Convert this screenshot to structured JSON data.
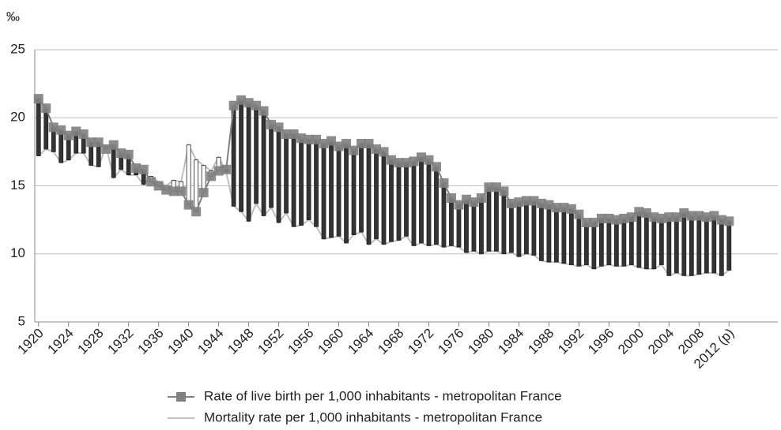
{
  "chart_data": {
    "type": "line",
    "y_unit": "‰",
    "categories": [
      "1920",
      null,
      null,
      null,
      "1924",
      null,
      null,
      null,
      "1928",
      null,
      null,
      null,
      "1932",
      null,
      null,
      null,
      "1936",
      null,
      null,
      null,
      "1940",
      null,
      null,
      null,
      "1944",
      null,
      null,
      null,
      "1948",
      null,
      null,
      null,
      "1952",
      null,
      null,
      null,
      "1956",
      null,
      null,
      null,
      "1960",
      null,
      null,
      null,
      "1964",
      null,
      null,
      null,
      "1968",
      null,
      null,
      null,
      "1972",
      null,
      null,
      null,
      "1976",
      null,
      null,
      null,
      "1980",
      null,
      null,
      null,
      "1984",
      null,
      null,
      null,
      "1988",
      null,
      null,
      null,
      "1992",
      null,
      null,
      null,
      "1996",
      null,
      null,
      null,
      "2000",
      null,
      null,
      null,
      "2004",
      null,
      null,
      null,
      "2008",
      null,
      null,
      null,
      "2012 (p)",
      null,
      null,
      null,
      null,
      null,
      null
    ],
    "series": [
      {
        "name": "Rate of live birth per 1,000 inhabitants - metropolitan France",
        "color": "#808080",
        "values": [
          21.4,
          20.7,
          19.3,
          19.1,
          18.7,
          19.0,
          18.8,
          18.2,
          18.2,
          17.7,
          18.0,
          17.4,
          17.3,
          16.3,
          16.2,
          15.3,
          15.0,
          14.7,
          14.6,
          14.6,
          13.6,
          13.1,
          14.5,
          15.7,
          16.1,
          16.2,
          20.9,
          21.3,
          21.1,
          20.9,
          20.5,
          19.5,
          19.3,
          18.8,
          18.8,
          18.5,
          18.4,
          18.4,
          18.1,
          18.3,
          17.9,
          18.1,
          17.6,
          18.1,
          18.1,
          17.7,
          17.5,
          16.9,
          16.7,
          16.7,
          16.8,
          17.1,
          16.9,
          16.4,
          15.2,
          14.1,
          13.6,
          14.0,
          13.8,
          14.1,
          14.9,
          14.9,
          14.6,
          13.7,
          13.8,
          13.9,
          13.9,
          13.7,
          13.6,
          13.4,
          13.4,
          13.3,
          12.9,
          12.3,
          12.3,
          12.6,
          12.6,
          12.5,
          12.6,
          12.7,
          13.1,
          13.0,
          12.7,
          12.6,
          12.7,
          12.7,
          13.0,
          12.8,
          12.8,
          12.7,
          12.8,
          12.5,
          12.4,
          null,
          null,
          null,
          null,
          null,
          null
        ]
      },
      {
        "name": "Mortality rate per 1,000 inhabitants - metropolitan France",
        "color": "#c0c0c0",
        "values": [
          17.2,
          17.7,
          17.5,
          16.7,
          16.9,
          17.4,
          17.4,
          16.5,
          16.4,
          17.9,
          15.6,
          16.2,
          15.8,
          15.8,
          15.1,
          15.7,
          15.3,
          15.0,
          15.4,
          15.3,
          18.0,
          16.9,
          16.5,
          16.1,
          17.1,
          16.0,
          13.5,
          13.1,
          12.4,
          13.7,
          12.8,
          13.4,
          12.3,
          13.0,
          12.0,
          12.1,
          12.5,
          12.0,
          11.1,
          11.2,
          11.3,
          10.8,
          11.4,
          11.6,
          10.7,
          11.1,
          10.7,
          10.9,
          11.0,
          11.3,
          10.6,
          10.8,
          10.6,
          10.7,
          10.5,
          10.6,
          10.5,
          10.1,
          10.2,
          10.0,
          10.2,
          10.2,
          10.0,
          10.1,
          9.8,
          10.0,
          9.9,
          9.5,
          9.4,
          9.4,
          9.3,
          9.2,
          9.1,
          9.2,
          8.9,
          9.1,
          9.2,
          9.1,
          9.1,
          9.2,
          9.0,
          8.9,
          8.9,
          9.2,
          8.4,
          8.6,
          8.4,
          8.4,
          8.5,
          8.6,
          8.6,
          8.4,
          8.8,
          null,
          null,
          null,
          null,
          null,
          null
        ]
      }
    ],
    "up_down_bars": {
      "down_color": "#333333",
      "up_color": "#ffffff"
    },
    "ylim": [
      5,
      25
    ],
    "yticks": [
      5,
      10,
      15,
      20,
      25
    ],
    "grid": true,
    "legend": "bottom"
  }
}
